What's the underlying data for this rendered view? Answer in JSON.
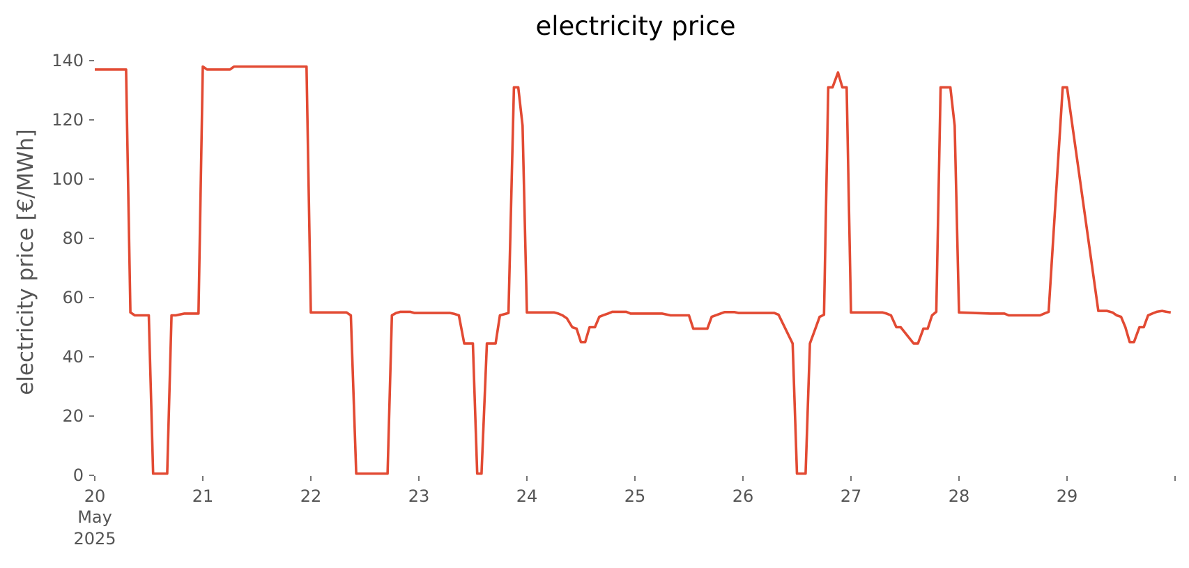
{
  "chart_data": {
    "type": "line",
    "title": "electricity price",
    "xlabel": "",
    "ylabel": "electricity price [€/MWh]",
    "x_unit": "day",
    "xlim": [
      20,
      30
    ],
    "ylim": [
      0,
      140
    ],
    "yticks": [
      0,
      20,
      40,
      60,
      80,
      100,
      120,
      140
    ],
    "xticks": [
      {
        "value": 20,
        "label": "20",
        "sublabels": [
          "May",
          "2025"
        ]
      },
      {
        "value": 21,
        "label": "21"
      },
      {
        "value": 22,
        "label": "22"
      },
      {
        "value": 23,
        "label": "23"
      },
      {
        "value": 24,
        "label": "24"
      },
      {
        "value": 25,
        "label": "25"
      },
      {
        "value": 26,
        "label": "26"
      },
      {
        "value": 27,
        "label": "27"
      },
      {
        "value": 28,
        "label": "28"
      },
      {
        "value": 29,
        "label": "29"
      },
      {
        "value": 30,
        "label": ""
      }
    ],
    "grid": false,
    "legend": "none",
    "color": "#E24A33",
    "series": [
      {
        "x": [
          20.0,
          20.29,
          20.33,
          20.37,
          20.42,
          20.5,
          20.54,
          20.67,
          20.71,
          20.75,
          20.83,
          20.96,
          21.0,
          21.04,
          21.25,
          21.29,
          21.96,
          22.0,
          22.33,
          22.37,
          22.42,
          22.71,
          22.75,
          22.79,
          22.83,
          22.92,
          22.96,
          23.29,
          23.33,
          23.37,
          23.42,
          23.5,
          23.54,
          23.58,
          23.63,
          23.71,
          23.75,
          23.83,
          23.88,
          23.92,
          23.96,
          24.0,
          24.25,
          24.29,
          24.33,
          24.37,
          24.42,
          24.46,
          24.5,
          24.54,
          24.58,
          24.63,
          24.67,
          24.71,
          24.75,
          24.79,
          24.83,
          24.92,
          24.96,
          25.25,
          25.33,
          25.5,
          25.54,
          25.67,
          25.71,
          25.83,
          25.88,
          25.92,
          25.96,
          26.29,
          26.33,
          26.46,
          26.5,
          26.58,
          26.62,
          26.67,
          26.71,
          26.75,
          26.79,
          26.83,
          26.88,
          26.92,
          26.96,
          27.0,
          27.29,
          27.33,
          27.37,
          27.42,
          27.46,
          27.58,
          27.62,
          27.67,
          27.71,
          27.75,
          27.79,
          27.83,
          27.92,
          27.96,
          28.0,
          28.29,
          28.33,
          28.37,
          28.42,
          28.46,
          28.67,
          28.71,
          28.75,
          28.79,
          28.83,
          28.96,
          29.0,
          29.29,
          29.33,
          29.37,
          29.42,
          29.46,
          29.5,
          29.54,
          29.58,
          29.62,
          29.67,
          29.71,
          29.75,
          29.79,
          29.83,
          29.88,
          29.92,
          29.96
        ],
        "y": [
          137,
          137,
          55,
          54,
          54,
          54,
          0.6,
          0.6,
          54,
          54,
          54.6,
          54.6,
          138,
          137,
          137,
          138,
          138,
          55,
          55,
          54,
          0.6,
          0.6,
          54,
          54.8,
          55.2,
          55.2,
          54.8,
          54.8,
          54.5,
          54,
          44.5,
          44.5,
          0.6,
          0.6,
          44.5,
          44.5,
          54,
          54.8,
          131,
          131,
          118,
          55,
          55,
          54.6,
          54,
          53,
          50,
          49.5,
          45,
          45,
          50,
          50,
          53.5,
          54.1,
          54.6,
          55.2,
          55.2,
          55.2,
          54.6,
          54.6,
          54,
          54,
          49.5,
          49.5,
          53.5,
          55.1,
          55.1,
          55.1,
          54.8,
          54.8,
          54.2,
          44.5,
          0.6,
          0.6,
          44.5,
          49.5,
          53.5,
          54.2,
          131,
          131,
          136,
          131,
          131,
          55,
          55,
          54.6,
          54,
          50,
          50,
          44.5,
          44.5,
          49.5,
          49.5,
          54,
          55.2,
          131,
          131,
          118,
          55,
          54.6,
          54.6,
          54.6,
          54.6,
          54,
          54,
          54,
          54,
          54.6,
          55.2,
          131,
          131,
          55.5,
          55.5,
          55.5,
          55,
          54,
          53.5,
          50,
          45,
          45,
          50,
          50,
          54,
          54.6,
          55.2,
          55.5,
          55.2,
          55
        ]
      }
    ]
  }
}
